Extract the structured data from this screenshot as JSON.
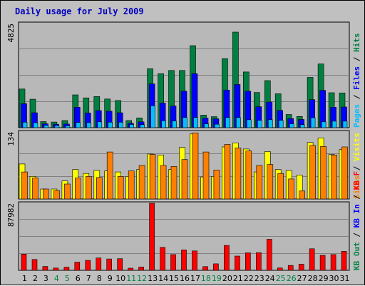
{
  "chart_data": [
    {
      "type": "bar",
      "title": "Daily usage for July 2009",
      "categories": [
        "1",
        "2",
        "3",
        "4",
        "5",
        "6",
        "7",
        "8",
        "9",
        "10",
        "11",
        "12",
        "13",
        "14",
        "15",
        "16",
        "17",
        "18",
        "19",
        "20",
        "21",
        "22",
        "23",
        "24",
        "25",
        "26",
        "27",
        "28",
        "29",
        "30",
        "31"
      ],
      "weekend_days": [
        "4",
        "5",
        "11",
        "12",
        "18",
        "19",
        "25",
        "26"
      ],
      "ymax_label": "4825",
      "ylim": [
        0,
        4825
      ],
      "legend": [
        {
          "label": "Hits",
          "color": "#008040"
        },
        {
          "label": "Files",
          "color": "#0000ff"
        },
        {
          "label": "Pages",
          "color": "#00c0ff"
        }
      ],
      "series": [
        {
          "name": "Hits",
          "values": [
            1790,
            1320,
            280,
            260,
            330,
            1520,
            1380,
            1440,
            1330,
            1260,
            330,
            450,
            2730,
            2500,
            2650,
            2650,
            3800,
            580,
            510,
            3200,
            4430,
            2580,
            1630,
            2180,
            1570,
            610,
            520,
            2330,
            2950,
            1620,
            1610
          ]
        },
        {
          "name": "Files",
          "values": [
            1110,
            690,
            180,
            160,
            170,
            950,
            680,
            790,
            760,
            690,
            200,
            270,
            2030,
            1140,
            1000,
            1690,
            2500,
            440,
            410,
            1740,
            2000,
            1690,
            970,
            1190,
            800,
            420,
            380,
            1300,
            1730,
            950,
            960
          ]
        },
        {
          "name": "Pages",
          "values": [
            250,
            230,
            110,
            100,
            90,
            240,
            230,
            270,
            250,
            250,
            150,
            140,
            1010,
            320,
            310,
            470,
            470,
            180,
            160,
            470,
            470,
            370,
            340,
            370,
            340,
            180,
            140,
            460,
            270,
            300,
            300
          ]
        }
      ]
    },
    {
      "type": "bar",
      "ymax_label": "134",
      "ylim": [
        0,
        134
      ],
      "legend": [
        {
          "label": "Visits",
          "color": "#ffff00"
        },
        {
          "label": "Sites",
          "color": "#ff8000"
        }
      ],
      "series": [
        {
          "name": "Visits",
          "values": [
            70,
            45,
            20,
            20,
            36,
            59,
            51,
            57,
            56,
            54,
            45,
            59,
            90,
            88,
            59,
            103,
            130,
            44,
            45,
            104,
            112,
            100,
            54,
            95,
            59,
            57,
            48,
            113,
            122,
            89,
            99
          ]
        },
        {
          "name": "Sites",
          "values": [
            54,
            42,
            20,
            17,
            30,
            42,
            45,
            43,
            94,
            45,
            56,
            67,
            89,
            67,
            65,
            79,
            132,
            94,
            58,
            109,
            102,
            96,
            67,
            69,
            51,
            40,
            16,
            107,
            105,
            88,
            104
          ]
        }
      ]
    },
    {
      "type": "bar",
      "ymax_label": "87982",
      "ylim": [
        0,
        87982
      ],
      "legend": [
        {
          "label": "KB F",
          "color": "#ff0000"
        },
        {
          "label": "KB In",
          "color": "#0000ff"
        },
        {
          "label": "KB Out",
          "color": "#008040"
        }
      ],
      "series": [
        {
          "name": "KB F",
          "values": [
            21200,
            14200,
            5100,
            3000,
            4100,
            10700,
            13000,
            16200,
            14900,
            15300,
            2800,
            4300,
            87982,
            30100,
            20700,
            26800,
            25500,
            4900,
            8500,
            32700,
            18700,
            22900,
            23100,
            40700,
            3100,
            6400,
            8000,
            28300,
            19700,
            20700,
            24900
          ]
        }
      ]
    }
  ]
}
